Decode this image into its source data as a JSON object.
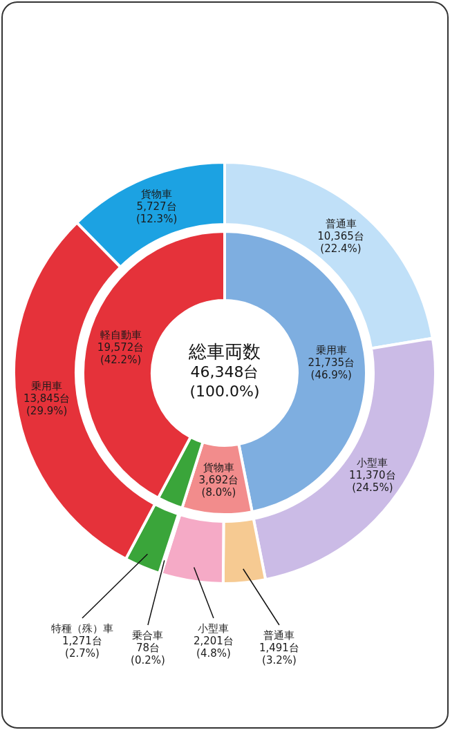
{
  "chart_data": [
    {
      "type": "donut",
      "categories": [
        "乗用車",
        "貨物車",
        null,
        "軽自動車"
      ],
      "values": [
        21735,
        3692,
        1349,
        19572
      ],
      "colors": [
        "#7eaee0",
        "#f28c8c",
        "#3aa53a",
        "#e5323a"
      ],
      "value_labels": [
        "21,735台 (46.9%)",
        "3,692台 (8.0%)",
        null,
        "19,572台 (42.2%)"
      ],
      "annotations": [
        "総車両数",
        "46,348台",
        "(100.0%)"
      ]
    },
    {
      "type": "donut",
      "categories": [
        "普通車",
        "小型車",
        "普通車",
        "小型車",
        "乗合車",
        "特種（殊）車",
        "乗用車",
        "貨物車"
      ],
      "values": [
        10365,
        11370,
        1491,
        2201,
        78,
        1271,
        13845,
        5727
      ],
      "colors": [
        "#c0e0f8",
        "#cbbbe6",
        "#f6ca92",
        "#f5aac6",
        "#c8dc3c",
        "#3aa53a",
        "#e5323a",
        "#1ca2e2"
      ],
      "value_labels": [
        "10,365台 (22.4%)",
        "11,370台 (24.5%)",
        "1,491台 (3.2%)",
        "2,201台 (4.8%)",
        "78台 (0.2%)",
        "1,271台 (2.7%)",
        "13,845台 (29.9%)",
        "5,727台 (12.3%)"
      ]
    }
  ]
}
